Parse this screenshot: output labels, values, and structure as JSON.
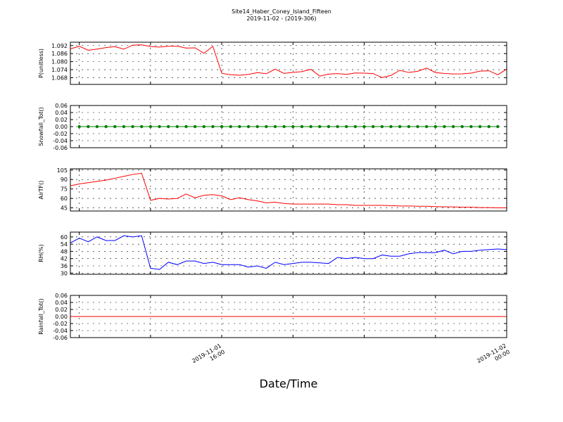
{
  "title": "Site14_Haber_Coney_Island_Fifteen",
  "subtitle": "2019-11-02 - (2019-306)",
  "xlabel": "Date/Time",
  "x_ticks": [
    {
      "x": 16,
      "label": [
        "2019-11-01",
        "16:00"
      ]
    },
    {
      "x": 48,
      "label": [
        "2019-11-02",
        "00:00"
      ]
    }
  ],
  "chart_data": [
    {
      "type": "line",
      "ylabel": "P(unitless)",
      "ylim": [
        1.063,
        1.0945
      ],
      "yticks": [
        1.068,
        1.074,
        1.08,
        1.086,
        1.092
      ],
      "tick_decimals": 3,
      "xlim": [
        -1,
        48
      ],
      "grid": true,
      "series": [
        {
          "color": "#ff0000",
          "markers": false,
          "x": [
            -1,
            0,
            1,
            2,
            3,
            4,
            5,
            6,
            7,
            8,
            9,
            10,
            11,
            12,
            13,
            14,
            15,
            16,
            17,
            18,
            19,
            20,
            21,
            22,
            23,
            24,
            25,
            26,
            27,
            28,
            29,
            30,
            31,
            32,
            33,
            34,
            35,
            36,
            37,
            38,
            39,
            40,
            41,
            42,
            43,
            44,
            45,
            46,
            47,
            48
          ],
          "y": [
            1.0895,
            1.0915,
            1.0885,
            1.0893,
            1.0905,
            1.0912,
            1.0893,
            1.0923,
            1.0925,
            1.0913,
            1.0909,
            1.0915,
            1.0915,
            1.0901,
            1.0903,
            1.0862,
            1.0914,
            1.0713,
            1.0702,
            1.0698,
            1.0705,
            1.0718,
            1.071,
            1.0744,
            1.0712,
            1.072,
            1.0725,
            1.0743,
            1.0692,
            1.0707,
            1.0711,
            1.0705,
            1.0715,
            1.0714,
            1.0711,
            1.0681,
            1.0697,
            1.0735,
            1.0719,
            1.0728,
            1.0752,
            1.0718,
            1.0712,
            1.0708,
            1.0709,
            1.0714,
            1.0729,
            1.0732,
            1.0702,
            1.0745
          ]
        }
      ]
    },
    {
      "type": "line",
      "ylabel": "Snowfall_Tot()",
      "ylim": [
        -0.06,
        0.06
      ],
      "yticks": [
        -0.06,
        -0.04,
        -0.02,
        0.0,
        0.02,
        0.04,
        0.06
      ],
      "tick_decimals": 2,
      "xlim": [
        -1,
        48
      ],
      "grid": true,
      "series": [
        {
          "color": "#008000",
          "markers": true,
          "x": [
            0,
            1,
            2,
            3,
            4,
            5,
            6,
            7,
            8,
            9,
            10,
            11,
            12,
            13,
            14,
            15,
            16,
            17,
            18,
            19,
            20,
            21,
            22,
            23,
            24,
            25,
            26,
            27,
            28,
            29,
            30,
            31,
            32,
            33,
            34,
            35,
            36,
            37,
            38,
            39,
            40,
            41,
            42,
            43,
            44,
            45,
            46,
            47
          ],
          "y": [
            0,
            0,
            0,
            0,
            0,
            0,
            0,
            0,
            0,
            0,
            0,
            0,
            0,
            0,
            0,
            0,
            0,
            0,
            0,
            0,
            0,
            0,
            0,
            0,
            0,
            0,
            0,
            0,
            0,
            0,
            0,
            0,
            0,
            0,
            0,
            0,
            0,
            0,
            0,
            0,
            0,
            0,
            0,
            0,
            0,
            0,
            0,
            0
          ]
        }
      ]
    },
    {
      "type": "line",
      "ylabel": "AirTF()",
      "ylim": [
        40,
        107
      ],
      "yticks": [
        45,
        60,
        75,
        90,
        105
      ],
      "tick_decimals": 0,
      "xlim": [
        -1,
        48
      ],
      "grid": true,
      "series": [
        {
          "color": "#ff0000",
          "markers": false,
          "x": [
            -1,
            0,
            1,
            2,
            3,
            4,
            5,
            6,
            7,
            8,
            9,
            10,
            11,
            12,
            13,
            14,
            15,
            16,
            17,
            18,
            19,
            20,
            21,
            22,
            23,
            24,
            25,
            26,
            27,
            28,
            29,
            30,
            31,
            32,
            33,
            34,
            35,
            36,
            37,
            38,
            39,
            40,
            41,
            42,
            43,
            44,
            45,
            46,
            47,
            48
          ],
          "y": [
            80,
            83,
            85,
            87,
            89,
            92,
            95,
            98,
            100,
            57,
            60,
            59,
            60,
            67,
            61,
            65,
            66,
            64,
            58,
            61,
            58,
            56,
            53,
            54,
            52,
            51,
            51,
            51,
            51,
            51,
            50,
            50,
            49,
            49,
            49,
            49,
            48.5,
            48,
            48,
            47.5,
            47.5,
            47,
            46.5,
            46.5,
            46,
            46,
            45.5,
            45.5,
            45,
            45
          ]
        }
      ]
    },
    {
      "type": "line",
      "ylabel": "RH(%)",
      "ylim": [
        29,
        64
      ],
      "yticks": [
        30,
        36,
        42,
        48,
        54,
        60
      ],
      "tick_decimals": 0,
      "xlim": [
        -1,
        48
      ],
      "grid": true,
      "series": [
        {
          "color": "#0000ff",
          "markers": false,
          "x": [
            -1,
            0,
            1,
            2,
            3,
            4,
            5,
            6,
            7,
            8,
            9,
            10,
            11,
            12,
            13,
            14,
            15,
            16,
            17,
            18,
            19,
            20,
            21,
            22,
            23,
            24,
            25,
            26,
            27,
            28,
            29,
            30,
            31,
            32,
            33,
            34,
            35,
            36,
            37,
            38,
            39,
            40,
            41,
            42,
            43,
            44,
            45,
            46,
            47,
            48
          ],
          "y": [
            55,
            59,
            56,
            60,
            57,
            57,
            61,
            60,
            61,
            34,
            33,
            39,
            37,
            40,
            40,
            38,
            39,
            37,
            37,
            37,
            35,
            36,
            34,
            39,
            37,
            38,
            39,
            39,
            38.5,
            38,
            43,
            42,
            43,
            42,
            42,
            45,
            44,
            44,
            46,
            47,
            47,
            47,
            49,
            46,
            48,
            48,
            49,
            49.5,
            50,
            49.5
          ]
        }
      ]
    },
    {
      "type": "line",
      "ylabel": "Rainfall_Tot()",
      "ylim": [
        -0.06,
        0.06
      ],
      "yticks": [
        -0.06,
        -0.04,
        -0.02,
        0.0,
        0.02,
        0.04,
        0.06
      ],
      "tick_decimals": 2,
      "xlim": [
        -1,
        48
      ],
      "grid": true,
      "series": [
        {
          "color": "#ff0000",
          "markers": false,
          "x": [
            -1,
            48
          ],
          "y": [
            0,
            0
          ]
        }
      ]
    }
  ]
}
